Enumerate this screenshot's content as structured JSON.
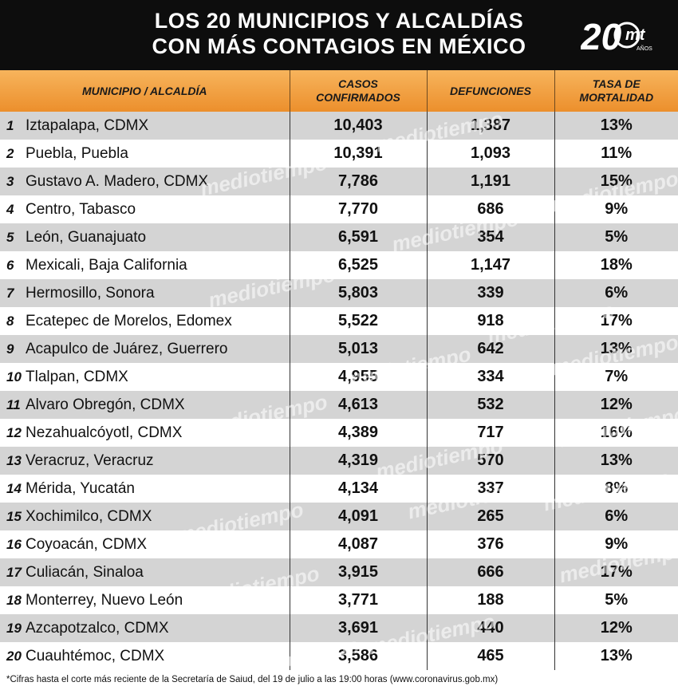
{
  "header": {
    "title_line1": "LOS 20 MUNICIPIOS Y ALCALDÍAS",
    "title_line2": "CON MÁS CONTAGIOS EN MÉXICO",
    "logo_number": "20",
    "logo_text": "mt",
    "logo_sub": "AÑOS"
  },
  "table": {
    "columns": [
      "MUNICIPIO / ALCALDÍA",
      "CASOS CONFIRMADOS",
      "DEFUNCIONES",
      "TASA DE MORTALIDAD"
    ],
    "rows": [
      {
        "rank": "1",
        "name": "Iztapalapa, CDMX",
        "cases": "10,403",
        "deaths": "1,387",
        "rate": "13%"
      },
      {
        "rank": "2",
        "name": "Puebla, Puebla",
        "cases": "10,391",
        "deaths": "1,093",
        "rate": "11%"
      },
      {
        "rank": "3",
        "name": "Gustavo A. Madero, CDMX",
        "cases": "7,786",
        "deaths": "1,191",
        "rate": "15%"
      },
      {
        "rank": "4",
        "name": "Centro, Tabasco",
        "cases": "7,770",
        "deaths": "686",
        "rate": "9%"
      },
      {
        "rank": "5",
        "name": "León, Guanajuato",
        "cases": "6,591",
        "deaths": "354",
        "rate": "5%"
      },
      {
        "rank": "6",
        "name": "Mexicali, Baja California",
        "cases": "6,525",
        "deaths": "1,147",
        "rate": "18%"
      },
      {
        "rank": "7",
        "name": "Hermosillo, Sonora",
        "cases": "5,803",
        "deaths": "339",
        "rate": "6%"
      },
      {
        "rank": "8",
        "name": "Ecatepec de Morelos, Edomex",
        "cases": "5,522",
        "deaths": "918",
        "rate": "17%"
      },
      {
        "rank": "9",
        "name": "Acapulco de Juárez, Guerrero",
        "cases": "5,013",
        "deaths": "642",
        "rate": "13%"
      },
      {
        "rank": "10",
        "name": "Tlalpan, CDMX",
        "cases": "4,955",
        "deaths": "334",
        "rate": "7%"
      },
      {
        "rank": "11",
        "name": "Alvaro Obregón, CDMX",
        "cases": "4,613",
        "deaths": "532",
        "rate": "12%"
      },
      {
        "rank": "12",
        "name": "Nezahualcóyotl, CDMX",
        "cases": "4,389",
        "deaths": "717",
        "rate": "16%"
      },
      {
        "rank": "13",
        "name": "Veracruz, Veracruz",
        "cases": "4,319",
        "deaths": "570",
        "rate": "13%"
      },
      {
        "rank": "14",
        "name": "Mérida, Yucatán",
        "cases": "4,134",
        "deaths": "337",
        "rate": "8%"
      },
      {
        "rank": "15",
        "name": "Xochimilco, CDMX",
        "cases": "4,091",
        "deaths": "265",
        "rate": "6%"
      },
      {
        "rank": "16",
        "name": "Coyoacán, CDMX",
        "cases": "4,087",
        "deaths": "376",
        "rate": "9%"
      },
      {
        "rank": "17",
        "name": "Culiacán, Sinaloa",
        "cases": "3,915",
        "deaths": "666",
        "rate": "17%"
      },
      {
        "rank": "18",
        "name": "Monterrey, Nuevo León",
        "cases": "3,771",
        "deaths": "188",
        "rate": "5%"
      },
      {
        "rank": "19",
        "name": "Azcapotzalco, CDMX",
        "cases": "3,691",
        "deaths": "440",
        "rate": "12%"
      },
      {
        "rank": "20",
        "name": "Cuauhtémoc, CDMX",
        "cases": "3,586",
        "deaths": "465",
        "rate": "13%"
      }
    ]
  },
  "footnote": "*Cifras hasta el corte más reciente de la Secretaría de Salud, del 19 de julio a las 19:00 horas (www.coronavirus.gob.mx)",
  "watermark": "mediotiempo",
  "colors": {
    "header_bg": "#0d0d0d",
    "header_accent": "#ec8f2c",
    "row_shade": "#d4d4d4"
  }
}
